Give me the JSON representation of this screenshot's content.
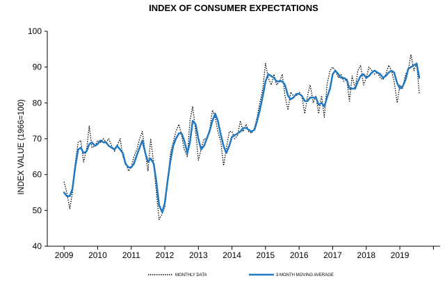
{
  "chart_data": {
    "type": "line",
    "title": "INDEX OF CONSUMER EXPECTATIONS",
    "xlabel": "",
    "ylabel": "INDEX VALUE (1966=100)",
    "xlim": [
      2008.5,
      2020.2
    ],
    "ylim": [
      40,
      100
    ],
    "yticks": [
      40,
      50,
      60,
      70,
      80,
      90,
      100
    ],
    "xticks": [
      2009,
      2010,
      2011,
      2012,
      2013,
      2014,
      2015,
      2016,
      2017,
      2018,
      2019
    ],
    "grid": false,
    "legend_position": "bottom",
    "series": [
      {
        "name": "MONTHLY DATA",
        "style": "dotted",
        "color": "#000000",
        "points": [
          [
            2009.0,
            58
          ],
          [
            2009.08,
            55
          ],
          [
            2009.17,
            50.5
          ],
          [
            2009.25,
            55
          ],
          [
            2009.33,
            63
          ],
          [
            2009.42,
            69
          ],
          [
            2009.5,
            69.5
          ],
          [
            2009.58,
            63.5
          ],
          [
            2009.67,
            67
          ],
          [
            2009.75,
            73.5
          ],
          [
            2009.83,
            67.5
          ],
          [
            2009.92,
            68
          ],
          [
            2010.0,
            69.5
          ],
          [
            2010.08,
            69
          ],
          [
            2010.17,
            70
          ],
          [
            2010.25,
            69
          ],
          [
            2010.33,
            70
          ],
          [
            2010.42,
            68
          ],
          [
            2010.5,
            66.5
          ],
          [
            2010.58,
            68
          ],
          [
            2010.67,
            70
          ],
          [
            2010.75,
            65
          ],
          [
            2010.83,
            63.5
          ],
          [
            2010.92,
            61
          ],
          [
            2011.0,
            62
          ],
          [
            2011.08,
            65
          ],
          [
            2011.17,
            67
          ],
          [
            2011.25,
            70
          ],
          [
            2011.33,
            72
          ],
          [
            2011.42,
            66
          ],
          [
            2011.5,
            61
          ],
          [
            2011.58,
            70
          ],
          [
            2011.67,
            63
          ],
          [
            2011.75,
            55
          ],
          [
            2011.83,
            47.5
          ],
          [
            2011.92,
            49
          ],
          [
            2012.0,
            51
          ],
          [
            2012.08,
            58
          ],
          [
            2012.17,
            66
          ],
          [
            2012.25,
            69
          ],
          [
            2012.33,
            72
          ],
          [
            2012.42,
            74
          ],
          [
            2012.5,
            71
          ],
          [
            2012.58,
            67
          ],
          [
            2012.67,
            65
          ],
          [
            2012.75,
            75
          ],
          [
            2012.83,
            79
          ],
          [
            2012.92,
            72
          ],
          [
            2013.0,
            64
          ],
          [
            2013.08,
            67
          ],
          [
            2013.17,
            70
          ],
          [
            2013.25,
            70
          ],
          [
            2013.33,
            72
          ],
          [
            2013.42,
            78
          ],
          [
            2013.5,
            76
          ],
          [
            2013.58,
            72
          ],
          [
            2013.67,
            69
          ],
          [
            2013.75,
            62.5
          ],
          [
            2013.83,
            67
          ],
          [
            2013.92,
            72
          ],
          [
            2014.0,
            72
          ],
          [
            2014.08,
            70
          ],
          [
            2014.17,
            71
          ],
          [
            2014.25,
            75
          ],
          [
            2014.33,
            72
          ],
          [
            2014.42,
            74
          ],
          [
            2014.5,
            72
          ],
          [
            2014.58,
            71.5
          ],
          [
            2014.67,
            73
          ],
          [
            2014.75,
            76
          ],
          [
            2014.83,
            80
          ],
          [
            2014.92,
            84
          ],
          [
            2015.0,
            91
          ],
          [
            2015.08,
            87
          ],
          [
            2015.17,
            85
          ],
          [
            2015.25,
            88
          ],
          [
            2015.33,
            85
          ],
          [
            2015.42,
            86
          ],
          [
            2015.5,
            88
          ],
          [
            2015.58,
            82
          ],
          [
            2015.67,
            78
          ],
          [
            2015.75,
            83
          ],
          [
            2015.83,
            82
          ],
          [
            2015.92,
            82
          ],
          [
            2016.0,
            83
          ],
          [
            2016.08,
            82
          ],
          [
            2016.17,
            77
          ],
          [
            2016.25,
            82
          ],
          [
            2016.33,
            85
          ],
          [
            2016.42,
            80
          ],
          [
            2016.5,
            82
          ],
          [
            2016.58,
            77
          ],
          [
            2016.67,
            82
          ],
          [
            2016.75,
            76
          ],
          [
            2016.83,
            85
          ],
          [
            2016.92,
            89
          ],
          [
            2017.0,
            90
          ],
          [
            2017.08,
            89
          ],
          [
            2017.17,
            87
          ],
          [
            2017.25,
            88
          ],
          [
            2017.33,
            86
          ],
          [
            2017.42,
            86.5
          ],
          [
            2017.5,
            80.5
          ],
          [
            2017.58,
            87.5
          ],
          [
            2017.67,
            84
          ],
          [
            2017.75,
            89
          ],
          [
            2017.83,
            90.5
          ],
          [
            2017.92,
            85
          ],
          [
            2018.0,
            87
          ],
          [
            2018.08,
            90
          ],
          [
            2018.17,
            89
          ],
          [
            2018.25,
            88
          ],
          [
            2018.33,
            88.5
          ],
          [
            2018.42,
            87
          ],
          [
            2018.5,
            86.5
          ],
          [
            2018.58,
            88
          ],
          [
            2018.67,
            90.5
          ],
          [
            2018.75,
            89
          ],
          [
            2018.83,
            86
          ],
          [
            2018.92,
            80
          ],
          [
            2019.0,
            85
          ],
          [
            2019.08,
            84
          ],
          [
            2019.17,
            88
          ],
          [
            2019.25,
            89
          ],
          [
            2019.33,
            93.5
          ],
          [
            2019.42,
            89
          ],
          [
            2019.5,
            91
          ],
          [
            2019.58,
            82.5
          ]
        ]
      },
      {
        "name": "3 MONTH MOVING AVERAGE",
        "style": "solid",
        "color": "#1f78c1",
        "points": [
          [
            2009.0,
            55
          ],
          [
            2009.08,
            54
          ],
          [
            2009.17,
            54
          ],
          [
            2009.25,
            56
          ],
          [
            2009.33,
            62
          ],
          [
            2009.42,
            67
          ],
          [
            2009.5,
            67.5
          ],
          [
            2009.58,
            66
          ],
          [
            2009.67,
            66.5
          ],
          [
            2009.75,
            68.5
          ],
          [
            2009.83,
            69
          ],
          [
            2009.92,
            68
          ],
          [
            2010.0,
            68.5
          ],
          [
            2010.08,
            69.5
          ],
          [
            2010.17,
            69
          ],
          [
            2010.25,
            69
          ],
          [
            2010.33,
            68
          ],
          [
            2010.42,
            67.5
          ],
          [
            2010.5,
            67
          ],
          [
            2010.58,
            68
          ],
          [
            2010.67,
            67
          ],
          [
            2010.75,
            66
          ],
          [
            2010.83,
            63
          ],
          [
            2010.92,
            62
          ],
          [
            2011.0,
            62
          ],
          [
            2011.08,
            63
          ],
          [
            2011.17,
            65.5
          ],
          [
            2011.25,
            67.5
          ],
          [
            2011.33,
            69.5
          ],
          [
            2011.42,
            66
          ],
          [
            2011.5,
            63.5
          ],
          [
            2011.58,
            64.5
          ],
          [
            2011.67,
            63
          ],
          [
            2011.75,
            58
          ],
          [
            2011.83,
            51.5
          ],
          [
            2011.92,
            49.5
          ],
          [
            2012.0,
            52
          ],
          [
            2012.08,
            58
          ],
          [
            2012.17,
            64
          ],
          [
            2012.25,
            68
          ],
          [
            2012.33,
            70
          ],
          [
            2012.42,
            71.5
          ],
          [
            2012.5,
            71.5
          ],
          [
            2012.58,
            69.5
          ],
          [
            2012.67,
            66
          ],
          [
            2012.75,
            69
          ],
          [
            2012.83,
            75
          ],
          [
            2012.92,
            74
          ],
          [
            2013.0,
            70
          ],
          [
            2013.08,
            67
          ],
          [
            2013.17,
            68
          ],
          [
            2013.25,
            70
          ],
          [
            2013.33,
            72
          ],
          [
            2013.42,
            75
          ],
          [
            2013.5,
            77
          ],
          [
            2013.58,
            75
          ],
          [
            2013.67,
            71
          ],
          [
            2013.75,
            68
          ],
          [
            2013.83,
            66
          ],
          [
            2013.92,
            68
          ],
          [
            2014.0,
            70.5
          ],
          [
            2014.08,
            71
          ],
          [
            2014.17,
            71.5
          ],
          [
            2014.25,
            72
          ],
          [
            2014.33,
            73
          ],
          [
            2014.42,
            73
          ],
          [
            2014.5,
            72.5
          ],
          [
            2014.58,
            72
          ],
          [
            2014.67,
            72.5
          ],
          [
            2014.75,
            75
          ],
          [
            2014.83,
            78
          ],
          [
            2014.92,
            82
          ],
          [
            2015.0,
            86
          ],
          [
            2015.08,
            88
          ],
          [
            2015.17,
            87.5
          ],
          [
            2015.25,
            87
          ],
          [
            2015.33,
            86
          ],
          [
            2015.42,
            86
          ],
          [
            2015.5,
            86
          ],
          [
            2015.58,
            85
          ],
          [
            2015.67,
            82
          ],
          [
            2015.75,
            81
          ],
          [
            2015.83,
            81.5
          ],
          [
            2015.92,
            82.5
          ],
          [
            2016.0,
            82.5
          ],
          [
            2016.08,
            82
          ],
          [
            2016.17,
            80.5
          ],
          [
            2016.25,
            80.5
          ],
          [
            2016.33,
            81.5
          ],
          [
            2016.42,
            81.5
          ],
          [
            2016.5,
            81.5
          ],
          [
            2016.58,
            79.5
          ],
          [
            2016.67,
            80
          ],
          [
            2016.75,
            79
          ],
          [
            2016.83,
            81.5
          ],
          [
            2016.92,
            84
          ],
          [
            2017.0,
            88
          ],
          [
            2017.08,
            89
          ],
          [
            2017.17,
            88
          ],
          [
            2017.25,
            87
          ],
          [
            2017.33,
            87
          ],
          [
            2017.42,
            86.5
          ],
          [
            2017.5,
            84
          ],
          [
            2017.58,
            84
          ],
          [
            2017.67,
            84
          ],
          [
            2017.75,
            86
          ],
          [
            2017.83,
            87.5
          ],
          [
            2017.92,
            88
          ],
          [
            2018.0,
            87
          ],
          [
            2018.08,
            87.5
          ],
          [
            2018.17,
            88.5
          ],
          [
            2018.25,
            89
          ],
          [
            2018.33,
            88.5
          ],
          [
            2018.42,
            88
          ],
          [
            2018.5,
            87
          ],
          [
            2018.58,
            87.5
          ],
          [
            2018.67,
            88.5
          ],
          [
            2018.75,
            89
          ],
          [
            2018.83,
            88.5
          ],
          [
            2018.92,
            85.5
          ],
          [
            2019.0,
            84
          ],
          [
            2019.08,
            84.5
          ],
          [
            2019.17,
            86.5
          ],
          [
            2019.25,
            89.5
          ],
          [
            2019.33,
            90
          ],
          [
            2019.42,
            90.5
          ],
          [
            2019.5,
            91
          ],
          [
            2019.58,
            87
          ]
        ]
      }
    ]
  }
}
